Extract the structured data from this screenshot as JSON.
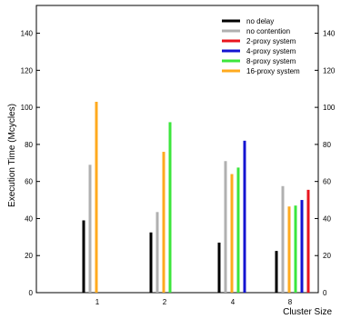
{
  "chart_data": {
    "type": "bar",
    "title": "",
    "xlabel": "Cluster Size",
    "ylabel": "Execution Time (Mcycles)",
    "ylim": [
      0,
      155
    ],
    "yticks": [
      0,
      20,
      40,
      60,
      80,
      100,
      120,
      140
    ],
    "y_right_axis_mirrored": true,
    "grid": false,
    "legend_position": "top-right",
    "categories": [
      "1",
      "2",
      "4",
      "8"
    ],
    "series": [
      {
        "name": "no delay",
        "color": "#000000",
        "values": [
          39,
          32.5,
          27,
          22.5
        ]
      },
      {
        "name": "no contention",
        "color": "#b0b0b0",
        "values": [
          69,
          43.5,
          71,
          57.5
        ]
      },
      {
        "name": "2-proxy system",
        "color": "#e8141e",
        "values": [
          null,
          null,
          null,
          55.5
        ]
      },
      {
        "name": "4-proxy system",
        "color": "#1414d2",
        "values": [
          null,
          null,
          82,
          50
        ]
      },
      {
        "name": "8-proxy system",
        "color": "#3ce63c",
        "values": [
          null,
          92,
          67.5,
          47
        ]
      },
      {
        "name": "16-proxy system",
        "color": "#ffaa1e",
        "values": [
          103,
          76,
          64,
          46.5
        ]
      }
    ],
    "bar_order_per_category": [
      [
        "no delay",
        "no contention",
        "16-proxy system"
      ],
      [
        "no delay",
        "no contention",
        "16-proxy system",
        "8-proxy system"
      ],
      [
        "no delay",
        "no contention",
        "16-proxy system",
        "8-proxy system",
        "4-proxy system"
      ],
      [
        "no delay",
        "no contention",
        "16-proxy system",
        "8-proxy system",
        "4-proxy system",
        "2-proxy system"
      ]
    ]
  }
}
